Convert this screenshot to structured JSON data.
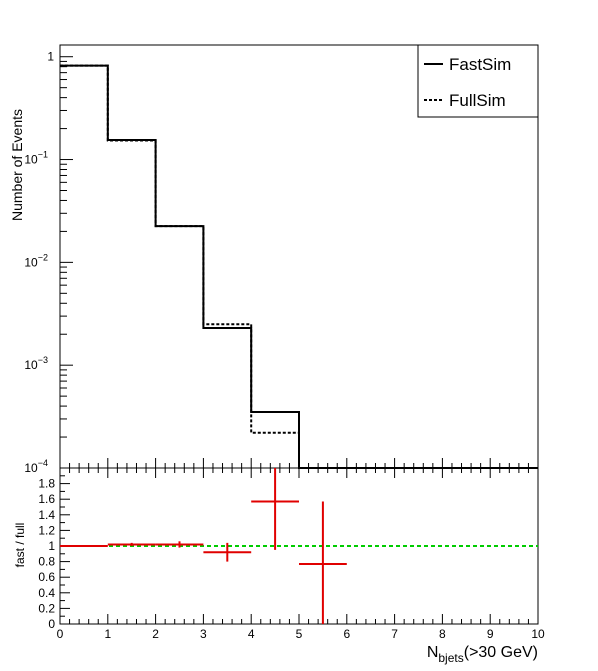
{
  "chart_data": [
    {
      "type": "line",
      "plot": "top-histogram",
      "ylabel": "Number of Events",
      "yscale": "log",
      "ylim": [
        0.0001,
        1.3
      ],
      "xlim": [
        0,
        10
      ],
      "bin_edges": [
        0,
        1,
        2,
        3,
        4,
        5,
        6,
        7,
        8,
        9,
        10
      ],
      "yticks": [
        {
          "value": 1,
          "base": "1",
          "exp": ""
        },
        {
          "value": 0.1,
          "base": "10",
          "exp": "−1"
        },
        {
          "value": 0.01,
          "base": "10",
          "exp": "−2"
        },
        {
          "value": 0.001,
          "base": "10",
          "exp": "−3"
        },
        {
          "value": 0.0001,
          "base": "10",
          "exp": "−4"
        }
      ],
      "legend_position": "top-right",
      "series": [
        {
          "name": "FastSim",
          "style": "solid",
          "values": [
            0.82,
            0.155,
            0.0225,
            0.0023,
            0.00035,
            0,
            0,
            0,
            0,
            0
          ]
        },
        {
          "name": "FullSim",
          "style": "dotted",
          "values": [
            0.82,
            0.153,
            0.0225,
            0.0025,
            0.00022,
            0,
            0,
            0,
            0,
            0
          ]
        }
      ]
    },
    {
      "type": "scatter",
      "plot": "ratio",
      "ylabel": "fast / full",
      "xlabel_main": "N",
      "xlabel_sub": "bjets",
      "xlabel_rest": "(>30 GeV)",
      "xlim": [
        0,
        10
      ],
      "ylim": [
        0,
        2
      ],
      "xticks": [
        "0",
        "1",
        "2",
        "3",
        "4",
        "5",
        "6",
        "7",
        "8",
        "9",
        "10"
      ],
      "yticks": [
        {
          "value": 0,
          "label": "0"
        },
        {
          "value": 0.2,
          "label": "0.2"
        },
        {
          "value": 0.4,
          "label": "0.4"
        },
        {
          "value": 0.6,
          "label": "0.6"
        },
        {
          "value": 0.8,
          "label": "0.8"
        },
        {
          "value": 1,
          "label": "1"
        },
        {
          "value": 1.2,
          "label": "1.2"
        },
        {
          "value": 1.4,
          "label": "1.4"
        },
        {
          "value": 1.6,
          "label": "1.6"
        },
        {
          "value": 1.8,
          "label": "1.8"
        }
      ],
      "reference_line": 1,
      "reference_color": "#00cc00",
      "marker_color": "#e00000",
      "points": [
        {
          "x": 0.5,
          "y": 1.0,
          "xerr": 0.5,
          "yerr": 0.005
        },
        {
          "x": 1.5,
          "y": 1.02,
          "xerr": 0.5,
          "yerr": 0.02
        },
        {
          "x": 2.5,
          "y": 1.02,
          "xerr": 0.5,
          "yerr": 0.04
        },
        {
          "x": 3.5,
          "y": 0.92,
          "xerr": 0.5,
          "yerr": 0.12
        },
        {
          "x": 4.5,
          "y": 1.57,
          "xerr": 0.5,
          "yerr": 0.62
        },
        {
          "x": 5.5,
          "y": 0.77,
          "xerr": 0.5,
          "yerr": 0.8
        }
      ]
    }
  ]
}
